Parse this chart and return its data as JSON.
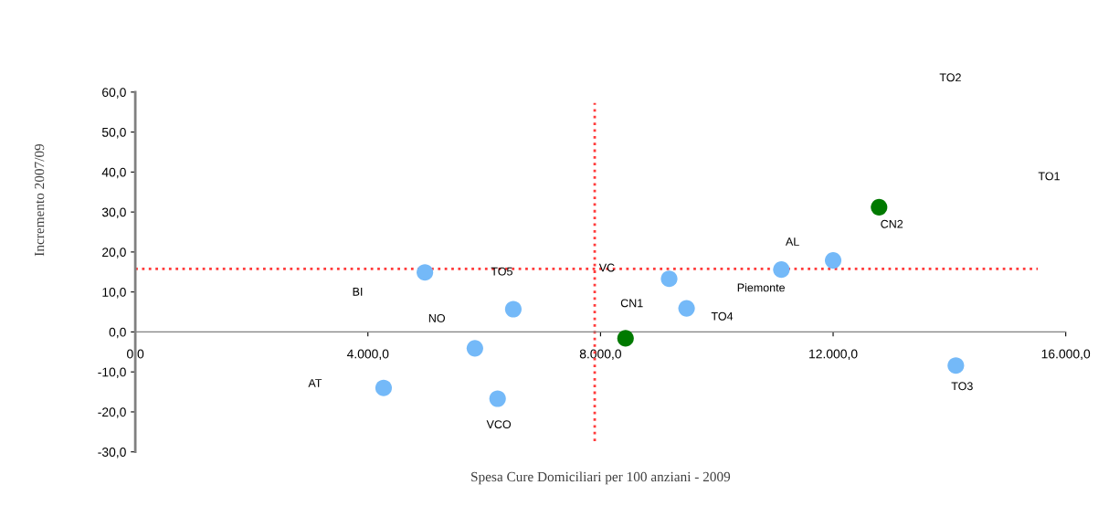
{
  "chart_data": {
    "type": "scatter",
    "xlabel": "Spesa Cure Domiciliari per 100 anziani - 2009",
    "ylabel": "Incremento 2007/09",
    "x": [
      4980,
      6500,
      5840,
      4270,
      6230,
      9180,
      9480,
      11110,
      12000,
      14110
    ],
    "series": [
      {
        "color": "#74b9f8",
        "values": [
          14.9,
          5.7,
          -4.1,
          -14.0,
          -16.7,
          13.3,
          5.9,
          15.6,
          17.9,
          -8.4
        ]
      },
      {
        "color": "#007a00",
        "x": [
          8430,
          12790
        ],
        "values": [
          -1.6,
          31.2
        ]
      }
    ],
    "xlim": [
      0,
      16000
    ],
    "xticks": [
      {
        "value": 0,
        "label": "0,0"
      },
      {
        "value": 4000,
        "label": "4.000,0"
      },
      {
        "value": 8000,
        "label": "8.000,0"
      },
      {
        "value": 12000,
        "label": "12.000,0"
      },
      {
        "value": 16000,
        "label": "16.000,0"
      }
    ],
    "ylim": [
      -30,
      60
    ],
    "yticks": [
      {
        "value": -30,
        "label": "-30,0"
      },
      {
        "value": -20,
        "label": "-20,0"
      },
      {
        "value": -10,
        "label": "-10,0"
      },
      {
        "value": 0,
        "label": "0,0"
      },
      {
        "value": 10,
        "label": "10,0"
      },
      {
        "value": 20,
        "label": "20,0"
      },
      {
        "value": 30,
        "label": "30,0"
      },
      {
        "value": 40,
        "label": "40,0"
      },
      {
        "value": 50,
        "label": "50,0"
      },
      {
        "value": 60,
        "label": "60,0"
      }
    ],
    "ref_lines": [
      {
        "axis": "y",
        "value": 15.8,
        "color": "#ff3b3b",
        "line_style": "dotted"
      },
      {
        "axis": "x",
        "value": 7900,
        "color": "#ff3b3b",
        "line_style": "dotted"
      }
    ],
    "annotations": [
      "BI",
      {
        "text": "TO5",
        "x": 6500,
        "y": 5.7
      },
      "NO",
      "AT",
      {
        "text": "VCO",
        "x": 6230,
        "y": -16.7
      },
      "VC",
      {
        "text": "TO4",
        "x": 9480,
        "y": 5.9
      },
      {
        "text": "Piemonte",
        "x": 11110,
        "y": 15.6
      },
      "AL",
      {
        "text": "TO3",
        "x": 14110,
        "y": -8.4
      },
      {
        "text": "CN1",
        "x": 8430,
        "y": -1.6
      },
      {
        "text": "CN2",
        "x": 12790,
        "y": 31.2
      },
      "TO2",
      "TO1"
    ],
    "marker": "circle"
  }
}
